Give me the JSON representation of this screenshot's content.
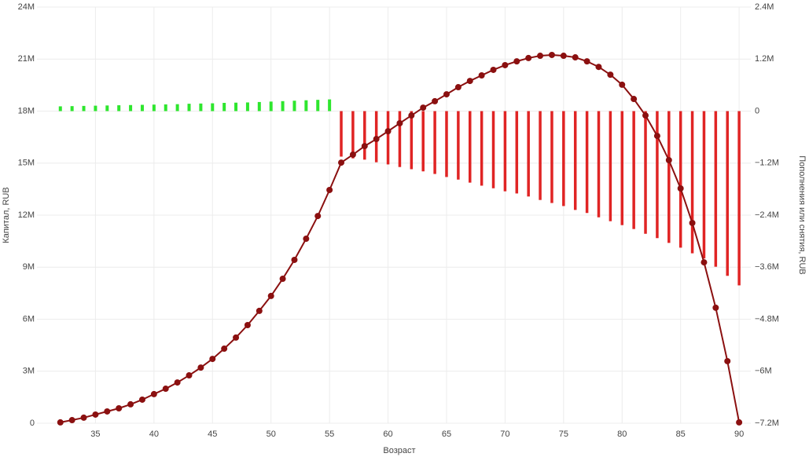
{
  "chart_data": {
    "type": "combo",
    "x_label": "Возраст",
    "y_label": "Капитал, RUB",
    "y2_label": "Пополнения или снятия, RUB",
    "x": [
      32,
      33,
      34,
      35,
      36,
      37,
      38,
      39,
      40,
      41,
      42,
      43,
      44,
      45,
      46,
      47,
      48,
      49,
      50,
      51,
      52,
      53,
      54,
      55,
      56,
      57,
      58,
      59,
      60,
      61,
      62,
      63,
      64,
      65,
      66,
      67,
      68,
      69,
      70,
      71,
      72,
      73,
      74,
      75,
      76,
      77,
      78,
      79,
      80,
      81,
      82,
      83,
      84,
      85,
      86,
      87,
      88,
      89,
      90
    ],
    "xlim": [
      30,
      91
    ],
    "xticks": [
      35,
      40,
      45,
      50,
      55,
      60,
      65,
      70,
      75,
      80,
      85,
      90
    ],
    "ylim": [
      0,
      24000000
    ],
    "yticks": [
      0,
      {
        "value": 3000000,
        "label": "3M"
      },
      {
        "value": 6000000,
        "label": "6M"
      },
      {
        "value": 9000000,
        "label": "9M"
      },
      {
        "value": 12000000,
        "label": "12M"
      },
      {
        "value": 15000000,
        "label": "15M"
      },
      {
        "value": 18000000,
        "label": "18M"
      },
      {
        "value": 21000000,
        "label": "21M"
      },
      {
        "value": 24000000,
        "label": "24M"
      }
    ],
    "y2lim": [
      -7200000,
      2400000
    ],
    "y2ticks": [
      {
        "value": -7200000,
        "label": "−7.2M"
      },
      {
        "value": -6000000,
        "label": "−6M"
      },
      {
        "value": -4800000,
        "label": "−4.8M"
      },
      {
        "value": -3600000,
        "label": "−3.6M"
      },
      {
        "value": -2400000,
        "label": "−2.4M"
      },
      {
        "value": -1200000,
        "label": "−1.2M"
      },
      0,
      {
        "value": 1200000,
        "label": "1.2M"
      },
      {
        "value": 2400000,
        "label": "2.4M"
      }
    ],
    "grid": true,
    "series": [
      {
        "type": "line",
        "color": "#8b1010",
        "values": [
          50000,
          180000,
          320000,
          500000,
          680000,
          860000,
          1090000,
          1360000,
          1680000,
          1990000,
          2350000,
          2760000,
          3210000,
          3710000,
          4300000,
          4940000,
          5660000,
          6480000,
          7340000,
          8330000,
          9420000,
          10640000,
          11950000,
          13450000,
          15030000,
          15490000,
          15980000,
          16390000,
          16840000,
          17300000,
          17750000,
          18200000,
          18570000,
          18970000,
          19380000,
          19740000,
          20060000,
          20380000,
          20650000,
          20870000,
          21060000,
          21190000,
          21240000,
          21190000,
          21100000,
          20870000,
          20550000,
          20100000,
          19520000,
          18700000,
          17750000,
          16570000,
          15170000,
          13540000,
          11550000,
          9280000,
          6660000,
          3580000,
          50000
        ]
      },
      {
        "type": "bar",
        "axis": "y2",
        "color_positive": "#2ee62e",
        "color_negative": "#e02424",
        "values": [
          110000,
          115000,
          120000,
          125000,
          130000,
          135000,
          140000,
          145000,
          150000,
          155000,
          160000,
          170000,
          175000,
          180000,
          190000,
          195000,
          200000,
          210000,
          220000,
          230000,
          240000,
          250000,
          260000,
          270000,
          -1050000,
          -1090000,
          -1120000,
          -1180000,
          -1230000,
          -1290000,
          -1340000,
          -1390000,
          -1450000,
          -1520000,
          -1580000,
          -1650000,
          -1720000,
          -1780000,
          -1850000,
          -1900000,
          -1970000,
          -2050000,
          -2120000,
          -2190000,
          -2280000,
          -2350000,
          -2450000,
          -2540000,
          -2630000,
          -2720000,
          -2830000,
          -2930000,
          -3040000,
          -3150000,
          -3280000,
          -3400000,
          -3590000,
          -3800000,
          -4020000
        ]
      }
    ]
  }
}
